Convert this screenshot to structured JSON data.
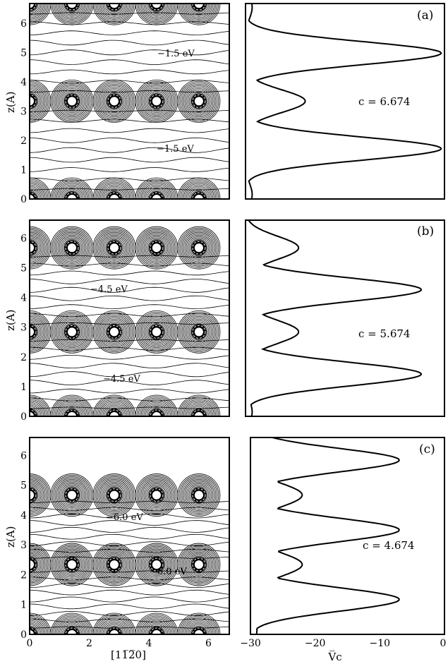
{
  "y_axis_label": "z(A)",
  "contour_x_label": "[11̅2̅0]",
  "profile_x_label": "V̅c",
  "contour_xticks": [
    "0",
    "2",
    "4",
    "6"
  ],
  "contour_yticks": [
    "0",
    "1",
    "2",
    "3",
    "4",
    "5",
    "6"
  ],
  "profile_xticks": [
    "−30",
    "−20",
    "−10",
    "0"
  ],
  "panels": [
    {
      "label": "(a)",
      "c_text": "c = 6.674",
      "energy_labels": [
        "−1.5 eV",
        "−1.5 eV"
      ],
      "atom_z": [
        0,
        3.34,
        6.67
      ]
    },
    {
      "label": "(b)",
      "c_text": "c = 5.674",
      "energy_labels": [
        "−4.5 eV",
        "−4.5 eV"
      ],
      "atom_z": [
        0,
        2.84,
        5.67
      ]
    },
    {
      "label": "(c)",
      "c_text": "c = 4.674",
      "energy_labels": [
        "−6.0 eV",
        "−6.0 eV"
      ],
      "atom_z": [
        0,
        2.34,
        4.67
      ]
    }
  ],
  "chart_data": [
    {
      "type": "contour",
      "panel": "(a)",
      "ylabel": "z(A)",
      "xlim": [
        0,
        6.7
      ],
      "ylim": [
        0,
        6.674
      ],
      "atom_x": [
        0,
        1.42,
        2.84,
        4.26,
        5.68
      ],
      "atom_z": [
        0,
        3.34,
        6.67
      ],
      "annotations": [
        "−1.5 eV",
        "−1.5 eV"
      ]
    },
    {
      "type": "line",
      "panel": "(a)",
      "annotation": "c = 6.674",
      "xlim": [
        -30,
        0
      ],
      "ylim": [
        0,
        6.674
      ],
      "minima": [
        {
          "z": 0.15,
          "v": -29
        },
        {
          "z": 1.72,
          "v": -0.5
        },
        {
          "z": 3.34,
          "v": -21
        },
        {
          "z": 4.98,
          "v": -0.5
        },
        {
          "z": 6.55,
          "v": -29
        }
      ]
    },
    {
      "type": "contour",
      "panel": "(b)",
      "ylabel": "z(A)",
      "xlim": [
        0,
        6.7
      ],
      "ylim": [
        0,
        6.6
      ],
      "atom_x": [
        0,
        1.42,
        2.84,
        4.26,
        5.68
      ],
      "atom_z": [
        0,
        2.84,
        5.67
      ],
      "annotations": [
        "−4.5 eV",
        "−4.5 eV"
      ]
    },
    {
      "type": "line",
      "panel": "(b)",
      "annotation": "c = 5.674",
      "xlim": [
        -30,
        0
      ],
      "ylim": [
        0,
        6.6
      ],
      "minima": [
        {
          "z": 0.15,
          "v": -29
        },
        {
          "z": 1.42,
          "v": -3.5
        },
        {
          "z": 2.84,
          "v": -22
        },
        {
          "z": 4.26,
          "v": -3.5
        },
        {
          "z": 5.67,
          "v": -22
        }
      ]
    },
    {
      "type": "contour",
      "panel": "(c)",
      "ylabel": "z(A)",
      "xlim": [
        0,
        6.7
      ],
      "ylim": [
        0,
        6.6
      ],
      "atom_x": [
        0,
        1.42,
        2.84,
        4.26,
        5.68
      ],
      "atom_z": [
        0,
        2.34,
        4.67
      ],
      "annotations": [
        "−6.0 eV",
        "−6.0 eV"
      ]
    },
    {
      "type": "line",
      "panel": "(c)",
      "annotation": "c = 4.674",
      "xlabel": "V̅c",
      "xlim": [
        -30,
        0
      ],
      "ylim": [
        0,
        6.6
      ],
      "minima": [
        {
          "z": 0.15,
          "v": -29
        },
        {
          "z": 1.17,
          "v": -7
        },
        {
          "z": 2.34,
          "v": -22
        },
        {
          "z": 3.5,
          "v": -7
        },
        {
          "z": 4.67,
          "v": -22
        },
        {
          "z": 5.84,
          "v": -7
        }
      ]
    }
  ]
}
